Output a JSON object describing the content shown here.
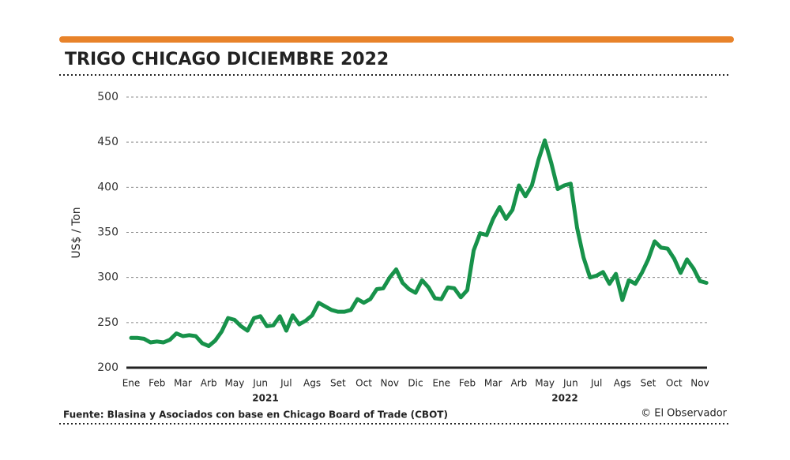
{
  "chart_data": {
    "type": "line",
    "title": "TRIGO CHICAGO DICIEMBRE 2022",
    "y_label": "US$ / Ton",
    "annotations": [
      "2021",
      "2022"
    ],
    "source": "Fuente: Blasina y Asociados con base en Chicago Board of Trade (CBOT)",
    "credit": "© El Observador",
    "categories": [
      "Ene",
      null,
      null,
      null,
      "Feb",
      null,
      null,
      null,
      "Mar",
      null,
      null,
      null,
      "Arb",
      null,
      null,
      null,
      "May",
      null,
      null,
      null,
      "Jun",
      null,
      null,
      null,
      "Jul",
      null,
      null,
      null,
      "Ags",
      null,
      null,
      null,
      "Set",
      null,
      null,
      null,
      "Oct",
      null,
      null,
      null,
      "Nov",
      null,
      null,
      null,
      "Dic",
      null,
      null,
      null,
      "Ene",
      null,
      null,
      null,
      "Feb",
      null,
      null,
      null,
      "Mar",
      null,
      null,
      null,
      "Arb",
      null,
      null,
      null,
      "May",
      null,
      null,
      null,
      "Jun",
      null,
      null,
      null,
      "Jul",
      null,
      null,
      null,
      "Ags",
      null,
      null,
      null,
      "Set",
      null,
      null,
      null,
      "Oct",
      null,
      null,
      null,
      "Nov",
      null
    ],
    "series": [
      {
        "name": "Trigo",
        "color": "#17924a",
        "values": [
          233,
          233,
          232,
          228,
          229,
          228,
          231,
          238,
          235,
          236,
          235,
          227,
          224,
          230,
          240,
          255,
          253,
          246,
          241,
          255,
          257,
          246,
          247,
          257,
          241,
          258,
          248,
          252,
          258,
          272,
          268,
          264,
          262,
          262,
          264,
          276,
          272,
          276,
          287,
          288,
          300,
          309,
          294,
          287,
          283,
          297,
          289,
          277,
          276,
          289,
          288,
          278,
          286,
          330,
          349,
          347,
          365,
          378,
          365,
          375,
          402,
          390,
          402,
          430,
          452,
          427,
          398,
          402,
          404,
          355,
          322,
          300,
          302,
          306,
          293,
          304,
          275,
          297,
          293,
          305,
          320,
          340,
          333,
          332,
          321,
          305,
          320,
          310,
          296,
          294
        ]
      }
    ],
    "ylim": [
      200,
      500
    ],
    "yticks": [
      200,
      250,
      300,
      350,
      400,
      450,
      500
    ],
    "grid": true
  }
}
